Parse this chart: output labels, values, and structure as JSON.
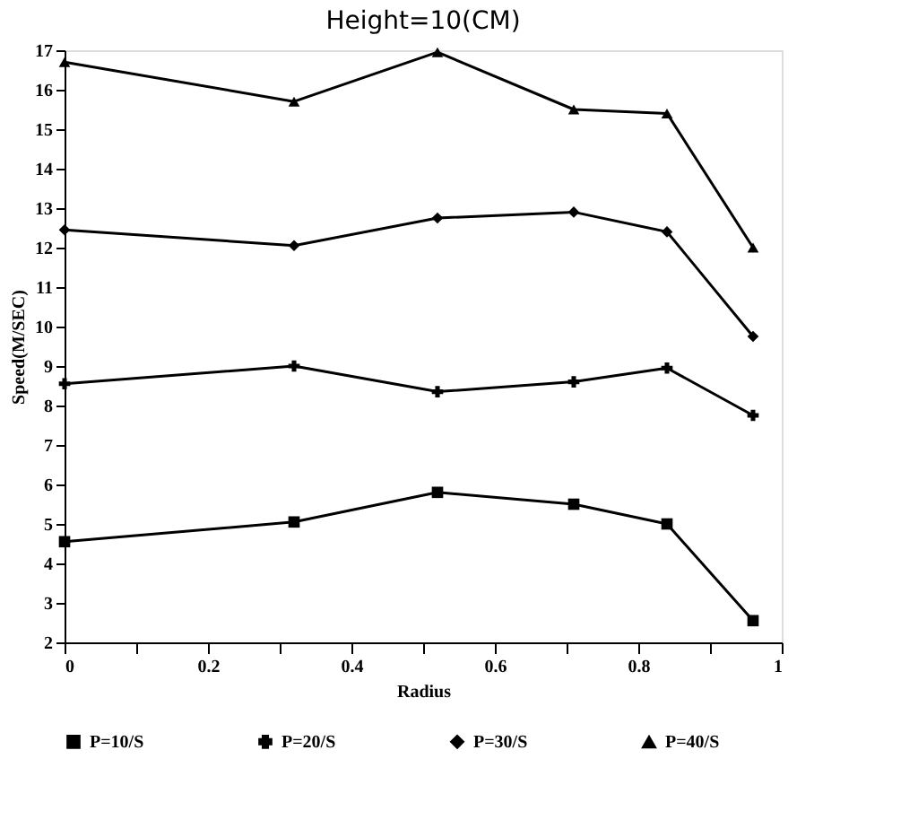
{
  "chart_data": {
    "type": "line",
    "title": "Height=10(CM)",
    "xlabel": "Radius",
    "ylabel": "Speed(M/SEC)",
    "x": [
      0,
      0.32,
      0.52,
      0.71,
      0.84,
      0.96
    ],
    "series": [
      {
        "name": "P=10/S",
        "color": "#000000",
        "marker": "square",
        "values": [
          4.55,
          5.05,
          5.8,
          5.5,
          5.0,
          2.55
        ]
      },
      {
        "name": "P=20/S",
        "color": "#000000",
        "marker": "cross",
        "values": [
          8.55,
          9.0,
          8.35,
          8.6,
          8.95,
          7.75
        ]
      },
      {
        "name": "P=30/S",
        "color": "#000000",
        "marker": "diamond",
        "values": [
          12.45,
          12.05,
          12.75,
          12.9,
          12.4,
          9.75
        ]
      },
      {
        "name": "P=40/S",
        "color": "#000000",
        "marker": "triangle",
        "values": [
          16.7,
          15.7,
          16.95,
          15.5,
          15.4,
          12.0
        ]
      }
    ],
    "xlim": [
      0,
      1
    ],
    "xticks": [
      0,
      {
        "value": 0.1,
        "label": null
      },
      0.2,
      {
        "value": 0.3,
        "label": null
      },
      0.4,
      {
        "value": 0.5,
        "label": null
      },
      0.6,
      {
        "value": 0.7,
        "label": null
      },
      0.8,
      {
        "value": 0.9,
        "label": null
      },
      1
    ],
    "ylim": [
      2,
      17
    ],
    "yticks": [
      2,
      3,
      4,
      5,
      6,
      7,
      8,
      9,
      10,
      11,
      12,
      13,
      14,
      15,
      16,
      17
    ],
    "grid": false,
    "legend": "bottom",
    "line_style": "solid"
  }
}
